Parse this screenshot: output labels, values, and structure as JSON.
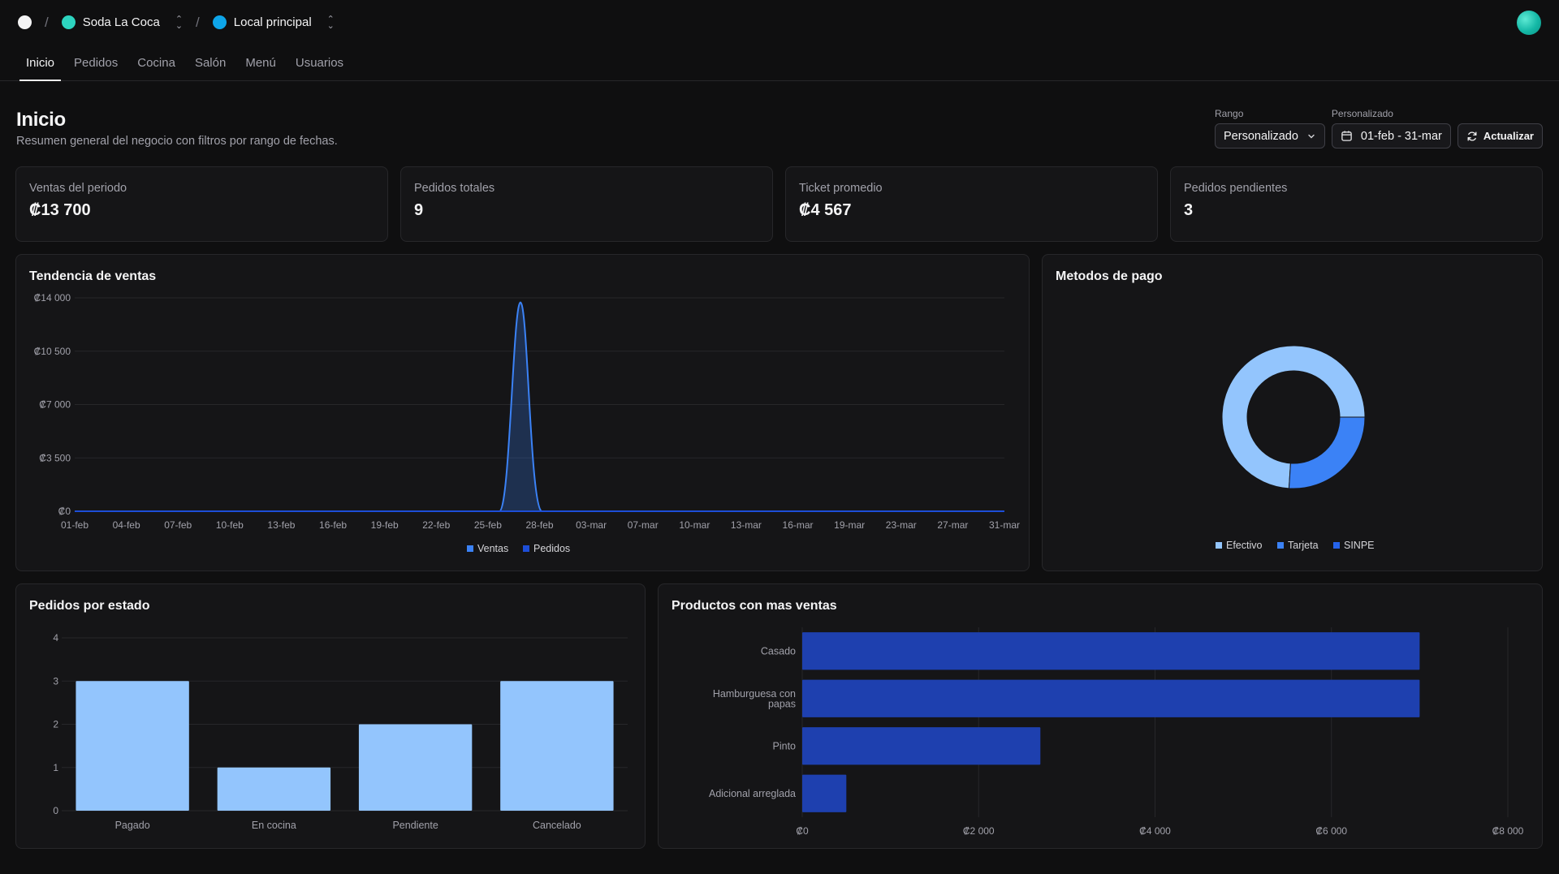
{
  "breadcrumb": {
    "org_name": "Soda La Coca",
    "org_color": "#2dd4bf",
    "location_name": "Local principal",
    "location_color": "#0ea5e9",
    "separator": "/"
  },
  "nav": {
    "tabs": [
      {
        "label": "Inicio",
        "active": true
      },
      {
        "label": "Pedidos",
        "active": false
      },
      {
        "label": "Cocina",
        "active": false
      },
      {
        "label": "Salón",
        "active": false
      },
      {
        "label": "Menú",
        "active": false
      },
      {
        "label": "Usuarios",
        "active": false
      }
    ]
  },
  "page": {
    "title": "Inicio",
    "subtitle": "Resumen general del negocio con filtros por rango de fechas."
  },
  "filters": {
    "range_label": "Rango",
    "range_value": "Personalizado",
    "custom_label": "Personalizado",
    "date_range": "01-feb - 31-mar",
    "refresh_label": "Actualizar"
  },
  "kpis": [
    {
      "label": "Ventas del periodo",
      "value": "₡13 700"
    },
    {
      "label": "Pedidos totales",
      "value": "9"
    },
    {
      "label": "Ticket promedio",
      "value": "₡4 567"
    },
    {
      "label": "Pedidos pendientes",
      "value": "3"
    }
  ],
  "colors": {
    "ventas": "#3b82f6",
    "pedidos": "#1d4ed8",
    "efectivo": "#93c5fd",
    "tarjeta": "#3b82f6",
    "sinpe": "#2563eb",
    "status_bar": "#93c5fd",
    "product_bar": "#1e40af"
  },
  "chart_data": [
    {
      "type": "area",
      "title": "Tendencia de ventas",
      "x_ticks": [
        "01-feb",
        "04-feb",
        "07-feb",
        "10-feb",
        "13-feb",
        "16-feb",
        "19-feb",
        "22-feb",
        "25-feb",
        "28-feb",
        "03-mar",
        "07-mar",
        "10-mar",
        "13-mar",
        "16-mar",
        "19-mar",
        "23-mar",
        "27-mar",
        "31-mar"
      ],
      "y_ticks": [
        "₡0",
        "₡3 500",
        "₡7 000",
        "₡10 500",
        "₡14 000"
      ],
      "ylim": [
        0,
        14000
      ],
      "series": [
        {
          "name": "Ventas",
          "peak_date": "26-feb",
          "peak_value": 13700,
          "baseline": 0
        },
        {
          "name": "Pedidos",
          "baseline": 0
        }
      ],
      "legend": [
        "Ventas",
        "Pedidos"
      ]
    },
    {
      "type": "pie",
      "title": "Metodos de pago",
      "slices": [
        {
          "name": "Efectivo",
          "value": 74
        },
        {
          "name": "Tarjeta",
          "value": 26
        },
        {
          "name": "SINPE",
          "value": 0
        }
      ],
      "legend": [
        "Efectivo",
        "Tarjeta",
        "SINPE"
      ]
    },
    {
      "type": "bar",
      "title": "Pedidos por estado",
      "categories": [
        "Pagado",
        "En cocina",
        "Pendiente",
        "Cancelado"
      ],
      "values": [
        3,
        1,
        2,
        3
      ],
      "y_ticks": [
        "0",
        "1",
        "2",
        "3",
        "4"
      ],
      "ylim": [
        0,
        4
      ]
    },
    {
      "type": "bar",
      "orientation": "horizontal",
      "title": "Productos con mas ventas",
      "categories": [
        "Casado",
        "Hamburguesa con papas",
        "Pinto",
        "Adicional arreglada"
      ],
      "values": [
        7000,
        7000,
        2700,
        500
      ],
      "x_ticks": [
        "₡0",
        "₡2 000",
        "₡4 000",
        "₡6 000",
        "₡8 000"
      ],
      "xlim": [
        0,
        8000
      ]
    }
  ]
}
